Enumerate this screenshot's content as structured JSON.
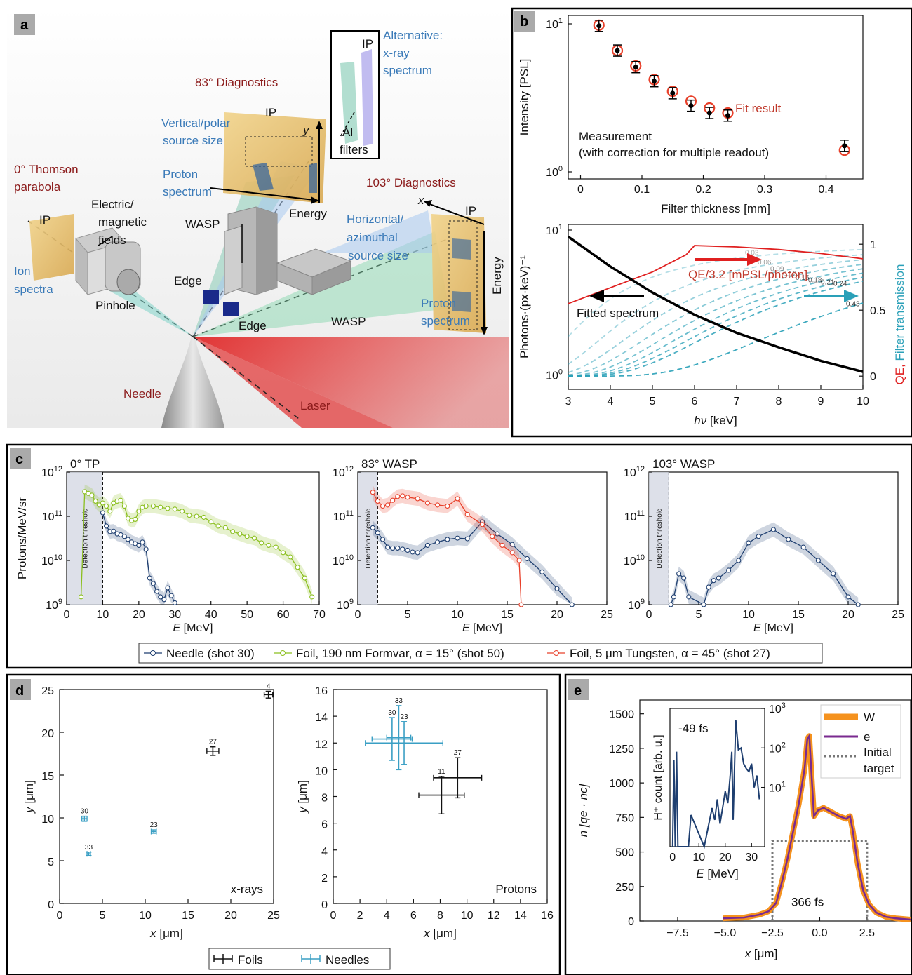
{
  "panel_labels": [
    "a",
    "b",
    "c",
    "d",
    "e"
  ],
  "panel_a": {
    "labels": {
      "diag83": "83° Diagnostics",
      "alt_line1": "Alternative:",
      "alt_line2": "x-ray",
      "alt_line3": "spectrum",
      "ip_alt": "IP",
      "al_line1": "Al",
      "al_line2": "filters",
      "ip_top": "IP",
      "y_axis": "y",
      "vert_line1": "Vertical/polar",
      "vert_line2": "source size",
      "proton_spec_top_1": "Proton",
      "proton_spec_top_2": "spectrum",
      "energy_top": "Energy",
      "thomson_line1": "0° Thomson",
      "thomson_line2": "parabola",
      "diag103": "103° Diagnostics",
      "x_axis": "x",
      "ip_right": "IP",
      "ip_left": "IP",
      "em_line1": "Electric/",
      "em_line2": "magnetic",
      "em_line3": "fields",
      "wasp_top": "WASP",
      "horiz_line1": "Horizontal/",
      "horiz_line2": "azimuthal",
      "horiz_line3": "source size",
      "ion_line1": "Ion",
      "ion_line2": "spectra",
      "pinhole": "Pinhole",
      "edge1": "Edge",
      "edge2": "Edge",
      "wasp_bottom": "WASP",
      "proton_spec_right_1": "Proton",
      "proton_spec_right_2": "spectrum",
      "energy_right": "Energy",
      "needle": "Needle",
      "laser": "Laser"
    },
    "colors": {
      "dark_red": "#8b1a1a",
      "blue": "#3a7ab8",
      "laser": "#e02020"
    }
  },
  "chart_data": [
    {
      "id": "b_top",
      "type": "scatter",
      "xlabel": "Filter thickness [mm]",
      "ylabel": "Intensity [PSL]",
      "xlim": [
        -0.02,
        0.46
      ],
      "ylim_log10": [
        0,
        1
      ],
      "xticks": [
        "0",
        "0.1",
        "0.2",
        "0.3",
        "0.4"
      ],
      "yticks": [
        "10^0",
        "10^1"
      ],
      "annotation_measurement_1": "Measurement",
      "annotation_measurement_2": "(with correction for multiple readout)",
      "annotation_fit": "Fit result",
      "measurement": {
        "x": [
          0.03,
          0.06,
          0.09,
          0.12,
          0.15,
          0.18,
          0.21,
          0.24,
          0.43
        ],
        "y": [
          9.7,
          6.6,
          5.1,
          4.1,
          3.4,
          2.8,
          2.5,
          2.4,
          1.5
        ]
      },
      "fit": {
        "x": [
          0.03,
          0.06,
          0.09,
          0.12,
          0.15,
          0.18,
          0.21,
          0.24,
          0.43
        ],
        "y": [
          9.8,
          6.6,
          5.2,
          4.2,
          3.5,
          3.0,
          2.7,
          2.5,
          1.4
        ]
      }
    },
    {
      "id": "b_bottom",
      "type": "line",
      "xlabel_prefix": "hν",
      "xlabel_unit": " [keV]",
      "ylabel": "Photons·(px·keV)⁻¹",
      "ylabel_right_1": "QE, ",
      "ylabel_right_2": "Filter transmission",
      "xlim": [
        3,
        10
      ],
      "xticks": [
        "3",
        "4",
        "5",
        "6",
        "7",
        "8",
        "9",
        "10"
      ],
      "yticks_left": [
        "10^0",
        "10^1"
      ],
      "yticks_right": [
        "0",
        "0.5",
        "1"
      ],
      "annotation_qe": "QE/3.2 [mPSL/photon]",
      "annotation_fit": "Fitted spectrum",
      "filter_labels": [
        "0.03",
        "0.06",
        "0.09",
        "0.12",
        "0.15",
        "0.18",
        "0.21",
        "0.24",
        "0.43"
      ],
      "fitted_spectrum": {
        "x": [
          3,
          4,
          5,
          6,
          7,
          8,
          9,
          10
        ],
        "y": [
          9.0,
          5.6,
          3.7,
          2.6,
          1.95,
          1.55,
          1.25,
          1.05
        ]
      },
      "qe_over_32": {
        "x": [
          3,
          4,
          5,
          5.8,
          6,
          7,
          8,
          9,
          10
        ],
        "y": [
          0.55,
          0.67,
          0.79,
          0.92,
          0.99,
          0.98,
          0.96,
          0.93,
          0.89
        ]
      }
    },
    {
      "id": "c1",
      "type": "line",
      "title": "0° TP",
      "ylabel": "Protons/MeV/sr",
      "xlabel": "E [MeV]",
      "xlim": [
        0,
        70
      ],
      "xticks": [
        "0",
        "10",
        "20",
        "30",
        "40",
        "50",
        "60",
        "70"
      ],
      "ylim_log10": [
        9,
        12
      ],
      "yticks": [
        "10^9",
        "10^10",
        "10^11",
        "10^12"
      ],
      "threshold_label": "Detection threshold",
      "threshold_x": 10,
      "series": [
        {
          "name": "Needle (shot 30)",
          "color": "#1f3f70",
          "x": [
            10,
            11,
            12,
            13,
            14,
            15,
            16,
            17,
            18,
            19,
            20,
            21,
            22,
            23,
            24,
            25,
            26,
            27,
            28,
            29,
            30
          ],
          "y": [
            120000000000.0,
            60000000000.0,
            45000000000.0,
            46000000000.0,
            40000000000.0,
            38000000000.0,
            35000000000.0,
            30000000000.0,
            26000000000.0,
            24000000000.0,
            22000000000.0,
            26000000000.0,
            18000000000.0,
            4000000000.0,
            3000000000.0,
            2000000000.0,
            1500000000.0,
            1300000000.0,
            2400000000.0,
            1600000000.0,
            1100000000.0
          ]
        },
        {
          "name": "Foil, 190 nm Formvar, α = 15° (shot 50)",
          "color": "#8bbf1f",
          "x": [
            4,
            5,
            6,
            7,
            8,
            9,
            10,
            11,
            12,
            13,
            14,
            15,
            16,
            17,
            18,
            19,
            20,
            21,
            22,
            24,
            26,
            28,
            30,
            32,
            34,
            36,
            38,
            40,
            42,
            44,
            46,
            48,
            50,
            52,
            54,
            56,
            58,
            60,
            62,
            64,
            66,
            68
          ],
          "y": [
            1500000000.0,
            360000000000.0,
            330000000000.0,
            300000000000.0,
            220000000000.0,
            180000000000.0,
            200000000000.0,
            170000000000.0,
            130000000000.0,
            200000000000.0,
            220000000000.0,
            230000000000.0,
            170000000000.0,
            90000000000.0,
            80000000000.0,
            85000000000.0,
            130000000000.0,
            160000000000.0,
            170000000000.0,
            170000000000.0,
            160000000000.0,
            150000000000.0,
            145000000000.0,
            130000000000.0,
            105000000000.0,
            100000000000.0,
            95000000000.0,
            75000000000.0,
            60000000000.0,
            55000000000.0,
            45000000000.0,
            40000000000.0,
            35000000000.0,
            32000000000.0,
            25000000000.0,
            22000000000.0,
            20000000000.0,
            15000000000.0,
            12000000000.0,
            7000000000.0,
            4000000000.0,
            1500000000.0
          ]
        }
      ]
    },
    {
      "id": "c2",
      "type": "line",
      "title": "83° WASP",
      "xlabel": "E [MeV]",
      "xlim": [
        0,
        25
      ],
      "xticks": [
        "0",
        "5",
        "10",
        "15",
        "20",
        "25"
      ],
      "ylim_log10": [
        9,
        12
      ],
      "yticks": [
        "10^9",
        "10^10",
        "10^11",
        "10^12"
      ],
      "threshold_label": "Detection threshold",
      "threshold_x": 2,
      "series": [
        {
          "name": "Needle (shot 30)",
          "color": "#1f3f70",
          "x": [
            1.5,
            2,
            2.5,
            3,
            3.5,
            4,
            4.5,
            5,
            5.5,
            6,
            7,
            8,
            9,
            10,
            11,
            12.5,
            14,
            15.5,
            17,
            18.5,
            20,
            21.5
          ],
          "y": [
            55000000000.0,
            42000000000.0,
            30000000000.0,
            20000000000.0,
            19000000000.0,
            19000000000.0,
            18000000000.0,
            17000000000.0,
            15500000000.0,
            15000000000.0,
            22000000000.0,
            26000000000.0,
            30000000000.0,
            32000000000.0,
            31000000000.0,
            75000000000.0,
            40000000000.0,
            23000000000.0,
            11000000000.0,
            5500000000.0,
            2300000000.0,
            1000000000.0
          ]
        },
        {
          "name": "Foil, 5 μm Tungsten, α = 45° (shot 27)",
          "color": "#e8402a",
          "x": [
            1.5,
            2,
            2.5,
            3,
            3.5,
            4,
            4.5,
            5,
            6,
            7,
            8,
            9,
            10,
            11,
            12.5,
            13.5,
            14.5,
            15.5,
            16.2,
            16.4
          ],
          "y": [
            350000000000.0,
            220000000000.0,
            170000000000.0,
            180000000000.0,
            230000000000.0,
            280000000000.0,
            290000000000.0,
            270000000000.0,
            250000000000.0,
            200000000000.0,
            180000000000.0,
            170000000000.0,
            250000000000.0,
            110000000000.0,
            65000000000.0,
            35000000000.0,
            22000000000.0,
            15000000000.0,
            10000000000.0,
            1000000000.0
          ]
        }
      ]
    },
    {
      "id": "c3",
      "type": "line",
      "title": "103° WASP",
      "xlabel": "E [MeV]",
      "xlim": [
        0,
        25
      ],
      "xticks": [
        "0",
        "5",
        "10",
        "15",
        "20",
        "25"
      ],
      "ylim_log10": [
        9,
        12
      ],
      "yticks": [
        "10^9",
        "10^10",
        "10^11",
        "10^12"
      ],
      "threshold_label": "Detection threshold",
      "threshold_x": 2,
      "series": [
        {
          "name": "Needle (shot 30)",
          "color": "#1f3f70",
          "x": [
            2.2,
            2.5,
            3,
            3.5,
            4,
            5.5,
            6,
            6.5,
            7,
            8,
            9,
            10,
            11,
            12.5,
            14,
            15.5,
            17,
            18.5,
            20,
            21
          ],
          "y": [
            1000000000.0,
            1500000000.0,
            5000000000.0,
            4000000000.0,
            1500000000.0,
            1000000000.0,
            2500000000.0,
            3500000000.0,
            4000000000.0,
            6000000000.0,
            10000000000.0,
            25000000000.0,
            35000000000.0,
            50000000000.0,
            30000000000.0,
            20000000000.0,
            10000000000.0,
            5000000000.0,
            1500000000.0,
            1000000000.0
          ]
        }
      ]
    },
    {
      "id": "d1",
      "type": "scatter",
      "xlabel": "x [μm]",
      "ylabel": "y [μm]",
      "xlim": [
        0,
        25
      ],
      "ylim": [
        0,
        25
      ],
      "xticks": [
        "0",
        "5",
        "10",
        "15",
        "20",
        "25"
      ],
      "yticks": [
        "0",
        "5",
        "10",
        "15",
        "20",
        "25"
      ],
      "corner_label": "x-rays",
      "series": [
        {
          "name": "Foils",
          "color": "#111111",
          "points": [
            {
              "label": "27",
              "x": 17.9,
              "y": 17.8,
              "xerr": 0.7,
              "yerr": 0.5
            },
            {
              "label": "4",
              "x": 24.4,
              "y": 24.4,
              "xerr": 0.5,
              "yerr": 0.4
            }
          ]
        },
        {
          "name": "Needles",
          "color": "#3a9fc4",
          "points": [
            {
              "label": "30",
              "x": 2.9,
              "y": 9.9,
              "xerr": 0.3,
              "yerr": 0.3
            },
            {
              "label": "33",
              "x": 3.4,
              "y": 5.8,
              "xerr": 0.2,
              "yerr": 0.2
            },
            {
              "label": "23",
              "x": 11.0,
              "y": 8.4,
              "xerr": 0.3,
              "yerr": 0.2
            }
          ]
        }
      ]
    },
    {
      "id": "d2",
      "type": "scatter",
      "xlabel": "x [μm]",
      "ylabel": "y [μm]",
      "xlim": [
        0,
        16
      ],
      "ylim": [
        0,
        16
      ],
      "xticks": [
        "0",
        "2",
        "4",
        "6",
        "8",
        "10",
        "12",
        "14",
        "16"
      ],
      "yticks": [
        "0",
        "2",
        "4",
        "6",
        "8",
        "10",
        "12",
        "14",
        "16"
      ],
      "corner_label": "Protons",
      "series": [
        {
          "name": "Foils",
          "color": "#111111",
          "points": [
            {
              "label": "11",
              "x": 8.1,
              "y": 8.1,
              "xerr": 1.7,
              "yerr": 1.4
            },
            {
              "label": "27",
              "x": 9.3,
              "y": 9.4,
              "xerr": 1.8,
              "yerr": 1.5
            }
          ]
        },
        {
          "name": "Needles",
          "color": "#3a9fc4",
          "points": [
            {
              "label": "30",
              "x": 4.4,
              "y": 12.3,
              "xerr": 1.5,
              "yerr": 1.6
            },
            {
              "label": "33",
              "x": 4.9,
              "y": 12.4,
              "xerr": 0.9,
              "yerr": 2.4
            },
            {
              "label": "23",
              "x": 5.3,
              "y": 12.0,
              "xerr": 2.9,
              "yerr": 1.6
            }
          ]
        }
      ]
    },
    {
      "id": "e",
      "type": "line",
      "xlabel": "x [μm]",
      "ylabel": "n [qe · nc]",
      "xlim": [
        -9.5,
        4.8
      ],
      "ylim": [
        0,
        1600
      ],
      "xticks": [
        "−7.5",
        "−5.0",
        "−2.5",
        "0.0",
        "2.5"
      ],
      "yticks": [
        "0",
        "250",
        "500",
        "750",
        "1000",
        "1250",
        "1500"
      ],
      "annotation": "366 fs",
      "series": [
        {
          "name": "W",
          "color": "#f5921e",
          "x": [
            -5.1,
            -4.0,
            -3.2,
            -2.7,
            -2.3,
            -2.0,
            -1.7,
            -1.4,
            -1.1,
            -0.8,
            -0.65,
            -0.55,
            -0.45,
            -0.3,
            -0.1,
            0.2,
            0.6,
            1.0,
            1.4,
            1.6,
            1.75,
            2.0,
            2.3,
            2.6,
            3.0,
            3.5,
            4.0,
            4.8
          ],
          "y": [
            20,
            25,
            45,
            70,
            130,
            280,
            450,
            650,
            850,
            1100,
            1320,
            1340,
            1100,
            760,
            800,
            820,
            790,
            760,
            740,
            760,
            650,
            420,
            220,
            120,
            60,
            30,
            20,
            10
          ]
        },
        {
          "name": "e",
          "color": "#7a2a8f",
          "x": [
            -5.1,
            -4.0,
            -3.2,
            -2.7,
            -2.3,
            -2.0,
            -1.7,
            -1.4,
            -1.1,
            -0.8,
            -0.65,
            -0.55,
            -0.45,
            -0.3,
            -0.1,
            0.2,
            0.6,
            1.0,
            1.4,
            1.6,
            1.75,
            2.0,
            2.3,
            2.6,
            3.0,
            3.5,
            4.0,
            4.8
          ],
          "y": [
            20,
            25,
            45,
            70,
            130,
            280,
            450,
            650,
            850,
            1100,
            1320,
            1340,
            1100,
            760,
            800,
            820,
            790,
            760,
            740,
            760,
            650,
            420,
            220,
            120,
            60,
            30,
            20,
            10
          ]
        },
        {
          "name": "Initial target",
          "color": "#777777",
          "x": [
            -2.5,
            -2.5,
            2.5,
            2.5
          ],
          "y": [
            0,
            580,
            580,
            0
          ]
        }
      ],
      "inset": {
        "label": "-49 fs",
        "xlabel": "E [MeV]",
        "ylabel": "H⁺ count [arb. u.]",
        "xlim": [
          -1,
          35
        ],
        "xticks": [
          "0",
          "10",
          "20",
          "30"
        ],
        "ylim_log10": [
          0,
          3
        ],
        "yticks": [
          "10^1",
          "10^2",
          "10^3"
        ],
        "series": {
          "name": "H+",
          "color": "#1f3f70",
          "x": [
            0,
            0.5,
            1,
            1.5,
            2,
            6,
            7,
            12,
            15,
            16,
            17,
            18,
            19,
            20,
            21,
            22,
            22.5,
            23,
            24,
            25,
            26,
            27,
            28,
            29,
            30,
            31,
            32,
            33
          ],
          "y": [
            0.1,
            50,
            0.1,
            80,
            0.1,
            0.1,
            2,
            0.1,
            3,
            1.5,
            5,
            1.2,
            3,
            8,
            4,
            25,
            80,
            1.5,
            500,
            90,
            100,
            40,
            30,
            25,
            40,
            10,
            20,
            5
          ]
        }
      }
    }
  ],
  "legend_c": [
    "Needle (shot 30)",
    "Foil, 190 nm Formvar, α = 15° (shot 50)",
    "Foil, 5 μm Tungsten, α = 45° (shot 27)"
  ],
  "legend_d": [
    "Foils",
    "Needles"
  ]
}
